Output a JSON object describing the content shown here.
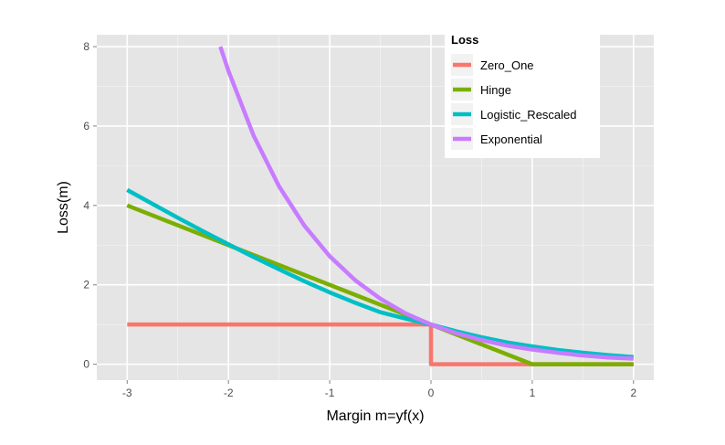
{
  "chart_data": {
    "type": "line",
    "title": "",
    "xlabel": "Margin m=yf(x)",
    "ylabel": "Loss(m)",
    "xlim": [
      -3.3,
      2.2
    ],
    "ylim": [
      -0.4,
      8.3
    ],
    "x_ticks": [
      -3,
      -2,
      -1,
      0,
      1,
      2
    ],
    "x_tick_labels": [
      "-3",
      "-2",
      "-1",
      "0",
      "1",
      "2"
    ],
    "y_ticks": [
      0,
      2,
      4,
      6,
      8
    ],
    "y_tick_labels": [
      "0",
      "2",
      "4",
      "6",
      "8"
    ],
    "grid": true,
    "legend": {
      "title": "Loss",
      "position": "top-right"
    },
    "series": [
      {
        "name": "Zero_One",
        "color": "#F8766D",
        "points": [
          [
            -3,
            1
          ],
          [
            0,
            1
          ],
          [
            0,
            0
          ],
          [
            2,
            0
          ]
        ]
      },
      {
        "name": "Hinge",
        "color": "#7CAE00",
        "points": [
          [
            -3,
            4
          ],
          [
            1,
            0
          ],
          [
            2,
            0
          ]
        ]
      },
      {
        "name": "Logistic_Rescaled",
        "color": "#00BFC4",
        "points": [
          [
            -3,
            4.39
          ],
          [
            -2.75,
            4.04
          ],
          [
            -2.5,
            3.69
          ],
          [
            -2.25,
            3.35
          ],
          [
            -2,
            3.02
          ],
          [
            -1.75,
            2.7
          ],
          [
            -1.5,
            2.39
          ],
          [
            -1.25,
            2.09
          ],
          [
            -1,
            1.81
          ],
          [
            -0.75,
            1.55
          ],
          [
            -0.5,
            1.31
          ],
          [
            -0.25,
            1.15
          ],
          [
            0,
            1.0
          ],
          [
            0.25,
            0.83
          ],
          [
            0.5,
            0.68
          ],
          [
            0.75,
            0.55
          ],
          [
            1,
            0.45
          ],
          [
            1.25,
            0.36
          ],
          [
            1.5,
            0.29
          ],
          [
            1.75,
            0.23
          ],
          [
            2,
            0.18
          ]
        ]
      },
      {
        "name": "Exponential",
        "color": "#C77CFF",
        "points": [
          [
            -2.08,
            8.0
          ],
          [
            -2,
            7.39
          ],
          [
            -1.75,
            5.75
          ],
          [
            -1.5,
            4.48
          ],
          [
            -1.25,
            3.49
          ],
          [
            -1,
            2.72
          ],
          [
            -0.75,
            2.12
          ],
          [
            -0.5,
            1.65
          ],
          [
            -0.25,
            1.28
          ],
          [
            0,
            1.0
          ],
          [
            0.25,
            0.78
          ],
          [
            0.5,
            0.61
          ],
          [
            0.75,
            0.47
          ],
          [
            1,
            0.37
          ],
          [
            1.25,
            0.29
          ],
          [
            1.5,
            0.22
          ],
          [
            1.75,
            0.17
          ],
          [
            2,
            0.14
          ]
        ]
      }
    ]
  },
  "colors": {
    "panel_background": "#e5e5e5",
    "grid_major": "#ffffff",
    "grid_minor": "#f2f2f2",
    "page_background": "#ffffff"
  }
}
